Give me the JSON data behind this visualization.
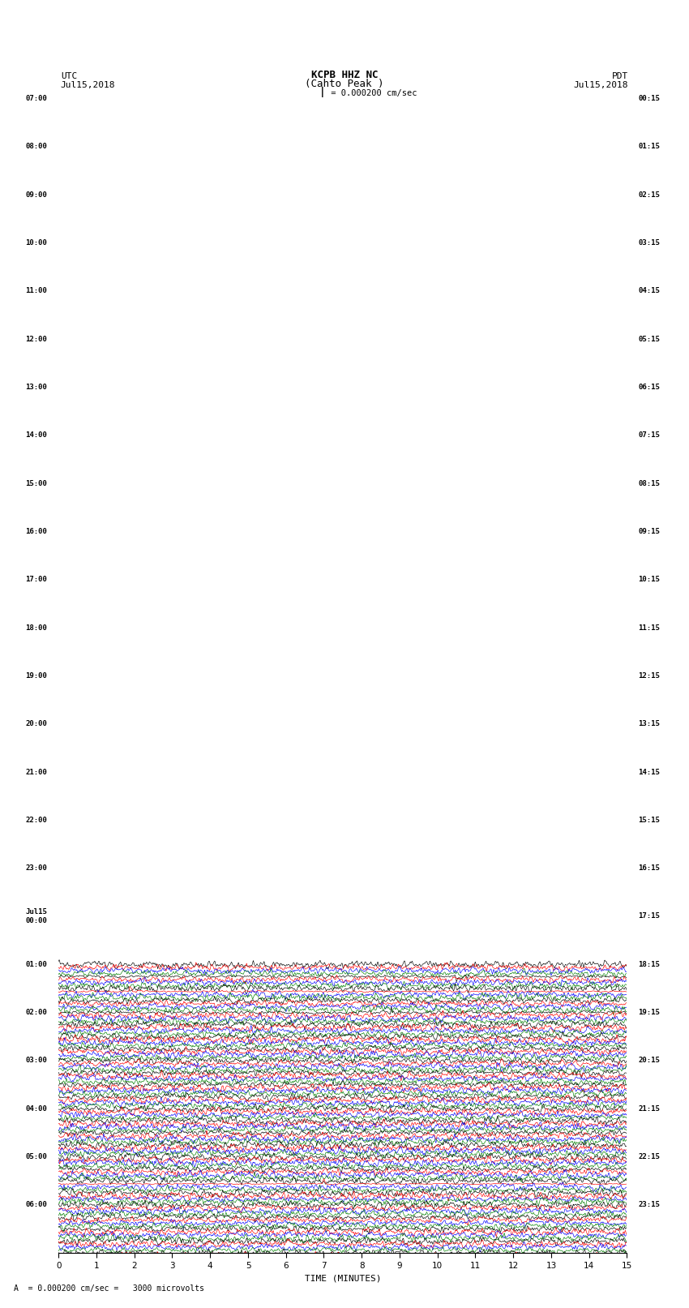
{
  "title_line1": "KCPB HHZ NC",
  "title_line2": "(Cahto Peak )",
  "scale_label": "= 0.000200 cm/sec",
  "scale_label2": "= 0.000200 cm/sec =   3000 microvolts",
  "utc_label": "UTC",
  "utc_date": "Jul15,2018",
  "pdt_label": "PDT",
  "pdt_date": "Jul15,2018",
  "xlabel": "TIME (MINUTES)",
  "xticks": [
    0,
    1,
    2,
    3,
    4,
    5,
    6,
    7,
    8,
    9,
    10,
    11,
    12,
    13,
    14,
    15
  ],
  "colors": [
    "black",
    "red",
    "blue",
    "green"
  ],
  "left_times": [
    "07:00",
    "",
    "",
    "",
    "08:00",
    "",
    "",
    "",
    "09:00",
    "",
    "",
    "",
    "10:00",
    "",
    "",
    "",
    "11:00",
    "",
    "",
    "",
    "12:00",
    "",
    "",
    "",
    "13:00",
    "",
    "",
    "",
    "14:00",
    "",
    "",
    "",
    "15:00",
    "",
    "",
    "",
    "16:00",
    "",
    "",
    "",
    "17:00",
    "",
    "",
    "",
    "18:00",
    "",
    "",
    "",
    "19:00",
    "",
    "",
    "",
    "20:00",
    "",
    "",
    "",
    "21:00",
    "",
    "",
    "",
    "22:00",
    "",
    "",
    "",
    "23:00",
    "",
    "",
    "",
    "Jul15\n00:00",
    "",
    "",
    "",
    "01:00",
    "",
    "",
    "",
    "02:00",
    "",
    "",
    "",
    "03:00",
    "",
    "",
    "",
    "04:00",
    "",
    "",
    "",
    "05:00",
    "",
    "",
    "",
    "06:00",
    "",
    "",
    ""
  ],
  "right_times": [
    "00:15",
    "",
    "",
    "",
    "01:15",
    "",
    "",
    "",
    "02:15",
    "",
    "",
    "",
    "03:15",
    "",
    "",
    "",
    "04:15",
    "",
    "",
    "",
    "05:15",
    "",
    "",
    "",
    "06:15",
    "",
    "",
    "",
    "07:15",
    "",
    "",
    "",
    "08:15",
    "",
    "",
    "",
    "09:15",
    "",
    "",
    "",
    "10:15",
    "",
    "",
    "",
    "11:15",
    "",
    "",
    "",
    "12:15",
    "",
    "",
    "",
    "13:15",
    "",
    "",
    "",
    "14:15",
    "",
    "",
    "",
    "15:15",
    "",
    "",
    "",
    "16:15",
    "",
    "",
    "",
    "17:15",
    "",
    "",
    "",
    "18:15",
    "",
    "",
    "",
    "19:15",
    "",
    "",
    "",
    "20:15",
    "",
    "",
    "",
    "21:15",
    "",
    "",
    "",
    "22:15",
    "",
    "",
    "",
    "23:15",
    "",
    "",
    ""
  ],
  "num_rows": 96,
  "fig_width": 8.5,
  "fig_height": 16.13,
  "background_color": "white",
  "seed": 42
}
